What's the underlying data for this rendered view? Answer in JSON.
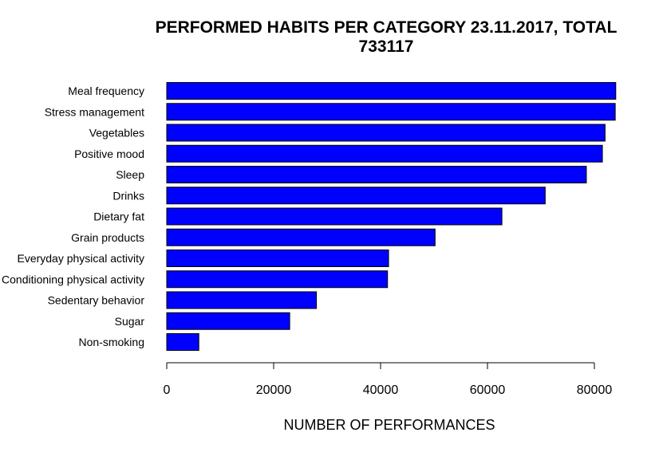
{
  "chart_data": {
    "type": "bar",
    "orientation": "horizontal",
    "title": "PERFORMED HABITS PER CATEGORY 23.11.2017, TOTAL 733117",
    "title_lines": [
      "PERFORMED HABITS PER CATEGORY 23.11.2017, TOTAL",
      "733117"
    ],
    "xlabel": "NUMBER OF PERFORMANCES",
    "ylabel": "",
    "categories": [
      "Meal frequency",
      "Stress management",
      "Vegetables",
      "Positive mood",
      "Sleep",
      "Drinks",
      "Dietary fat",
      "Grain products",
      "Everyday physical activity",
      "Conditioning physical activity",
      "Sedentary behavior",
      "Sugar",
      "Non-smoking"
    ],
    "values": [
      84000,
      83900,
      82000,
      81500,
      78500,
      70800,
      62700,
      50200,
      41500,
      41300,
      28000,
      23000,
      6000
    ],
    "xlim": [
      0,
      84000
    ],
    "xticks": [
      0,
      20000,
      40000,
      60000,
      80000
    ],
    "xtick_labels": [
      "0",
      "20000",
      "40000",
      "60000",
      "80000"
    ],
    "bar_color": "#0000ff",
    "grid": false,
    "legend": "none"
  }
}
